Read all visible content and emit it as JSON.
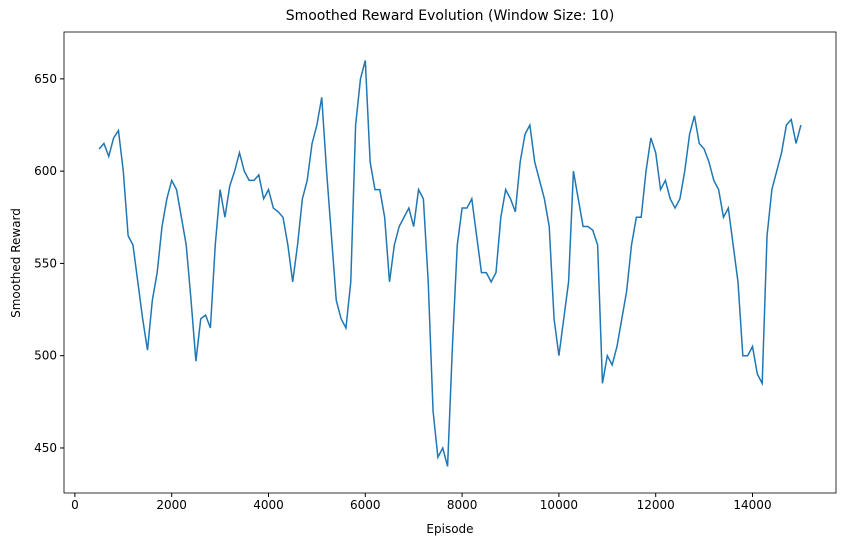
{
  "chart_data": {
    "type": "line",
    "title": "Smoothed Reward Evolution (Window Size: 10)",
    "xlabel": "Episode",
    "ylabel": "Smoothed Reward",
    "x": [
      500,
      600,
      700,
      800,
      900,
      1000,
      1100,
      1200,
      1300,
      1400,
      1500,
      1600,
      1700,
      1800,
      1900,
      2000,
      2100,
      2200,
      2300,
      2400,
      2500,
      2600,
      2700,
      2800,
      2900,
      3000,
      3100,
      3200,
      3300,
      3400,
      3500,
      3600,
      3700,
      3800,
      3900,
      4000,
      4100,
      4200,
      4300,
      4400,
      4500,
      4600,
      4700,
      4800,
      4900,
      5000,
      5100,
      5200,
      5300,
      5400,
      5500,
      5600,
      5700,
      5800,
      5900,
      6000,
      6100,
      6200,
      6300,
      6400,
      6500,
      6600,
      6700,
      6800,
      6900,
      7000,
      7100,
      7200,
      7300,
      7400,
      7500,
      7600,
      7700,
      7800,
      7900,
      8000,
      8100,
      8200,
      8300,
      8400,
      8500,
      8600,
      8700,
      8800,
      8900,
      9000,
      9100,
      9200,
      9300,
      9400,
      9500,
      9600,
      9700,
      9800,
      9900,
      10000,
      10100,
      10200,
      10300,
      10400,
      10500,
      10600,
      10700,
      10800,
      10900,
      11000,
      11100,
      11200,
      11300,
      11400,
      11500,
      11600,
      11700,
      11800,
      11900,
      12000,
      12100,
      12200,
      12300,
      12400,
      12500,
      12600,
      12700,
      12800,
      12900,
      13000,
      13100,
      13200,
      13300,
      13400,
      13500,
      13600,
      13700,
      13800,
      13900,
      14000,
      14100,
      14200,
      14300,
      14400,
      14500,
      14600,
      14700,
      14800,
      14900,
      15000
    ],
    "series": [
      {
        "name": "Smoothed Reward",
        "color": "#1f77b4",
        "values": [
          612,
          615,
          608,
          618,
          622,
          600,
          565,
          560,
          540,
          520,
          503,
          530,
          545,
          570,
          585,
          595,
          590,
          575,
          560,
          530,
          497,
          520,
          522,
          515,
          560,
          590,
          575,
          592,
          600,
          610,
          600,
          595,
          595,
          598,
          585,
          590,
          580,
          578,
          575,
          560,
          540,
          560,
          585,
          595,
          615,
          625,
          640,
          600,
          565,
          530,
          520,
          515,
          540,
          625,
          650,
          660,
          605,
          590,
          590,
          575,
          540,
          560,
          570,
          575,
          580,
          570,
          590,
          585,
          540,
          470,
          445,
          450,
          440,
          505,
          560,
          580,
          580,
          585,
          565,
          545,
          545,
          540,
          545,
          575,
          590,
          585,
          578,
          605,
          620,
          625,
          605,
          595,
          585,
          570,
          520,
          500,
          520,
          540,
          600,
          585,
          570,
          570,
          568,
          560,
          485,
          500,
          495,
          505,
          520,
          535,
          560,
          575,
          575,
          600,
          618,
          610,
          590,
          595,
          585,
          580,
          585,
          600,
          620,
          630,
          615,
          612,
          605,
          595,
          590,
          575,
          580,
          560,
          540,
          500,
          500,
          505,
          490,
          485,
          565,
          590,
          600,
          610,
          625,
          628,
          615,
          625
        ]
      }
    ],
    "xlim": [
      -225,
      15725
    ],
    "ylim": [
      425.6,
      675.4
    ],
    "xticks": [
      0,
      2000,
      4000,
      6000,
      8000,
      10000,
      12000,
      14000
    ],
    "yticks": [
      450,
      500,
      550,
      600,
      650
    ]
  }
}
